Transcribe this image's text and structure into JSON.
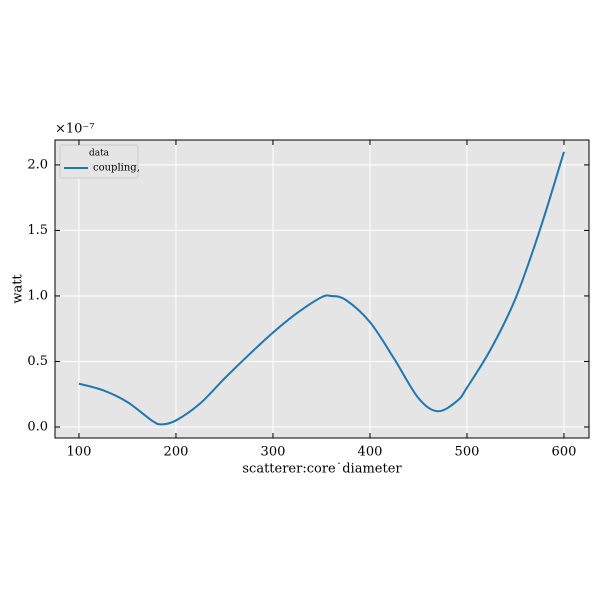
{
  "chart_data": {
    "type": "line",
    "x": [
      100,
      125,
      150,
      175,
      185,
      200,
      225,
      250,
      275,
      300,
      325,
      350,
      360,
      375,
      400,
      425,
      450,
      470,
      490,
      500,
      525,
      550,
      575,
      600
    ],
    "series": [
      {
        "name": "coupling,",
        "color": "#1f77b4",
        "values": [
          0.33,
          0.28,
          0.19,
          0.05,
          0.02,
          0.05,
          0.18,
          0.37,
          0.55,
          0.72,
          0.87,
          0.99,
          1.0,
          0.97,
          0.8,
          0.52,
          0.22,
          0.12,
          0.2,
          0.3,
          0.6,
          0.98,
          1.5,
          2.1
        ]
      }
    ],
    "xlabel": "scatterer:core˙diameter",
    "ylabel": "watt",
    "offset_text": "×10⁻⁷",
    "legend_title": "data",
    "legend": "upper left",
    "grid": true,
    "xlim": [
      75.3,
      625.8
    ],
    "ylim": [
      -0.084,
      2.19
    ],
    "xticks": [
      100,
      200,
      300,
      400,
      500,
      600
    ],
    "yticks": [
      {
        "value": 0,
        "label": "0.0"
      },
      0.5,
      {
        "value": 1,
        "label": "1.0"
      },
      1.5,
      {
        "value": 2,
        "label": "2.0"
      }
    ]
  }
}
